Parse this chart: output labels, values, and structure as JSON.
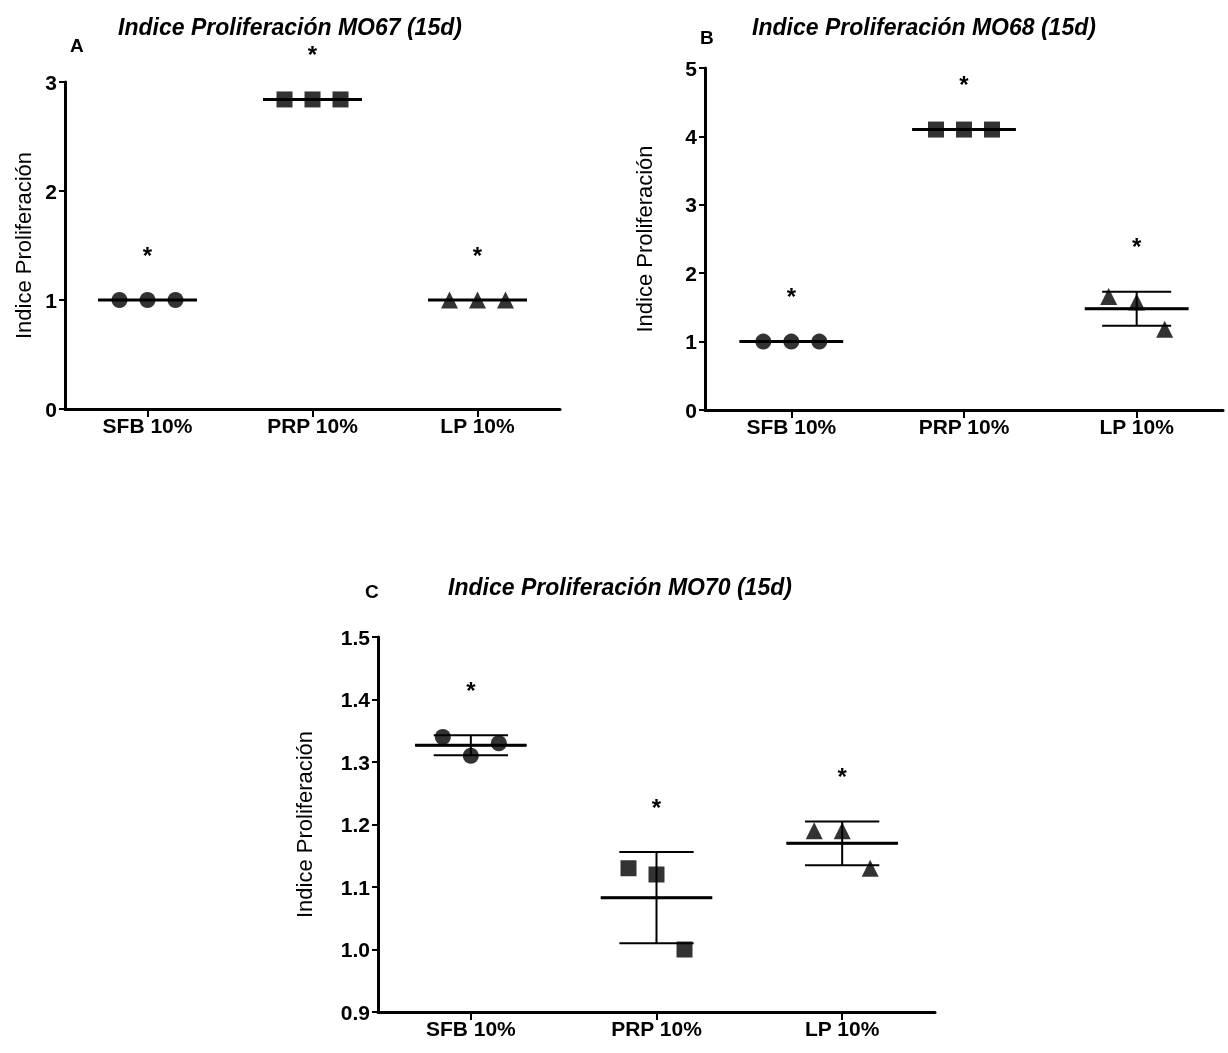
{
  "chart_data": [
    {
      "type": "scatter",
      "title": "Indice Proliferación MO67 (15d)",
      "ylabel": "Indice Proliferación",
      "categories": [
        "SFB 10%",
        "PRP 10%",
        "LP 10%"
      ],
      "ylim": [
        0,
        3
      ],
      "yticks": [
        0,
        1,
        2,
        3
      ],
      "series": [
        {
          "marker": "circle",
          "color": "#000000",
          "x": [
            "SFB 10%",
            "SFB 10%",
            "SFB 10%"
          ],
          "values": [
            1.0,
            1.0,
            1.0
          ]
        },
        {
          "marker": "square",
          "color": "#000000",
          "x": [
            "PRP 10%",
            "PRP 10%",
            "PRP 10%"
          ],
          "values": [
            2.84,
            2.84,
            2.84
          ]
        },
        {
          "marker": "triangle",
          "color": "#000000",
          "x": [
            "LP 10%",
            "LP 10%",
            "LP 10%"
          ],
          "values": [
            1.0,
            1.0,
            1.0
          ]
        },
        {
          "type": "box",
          "color": "#000000",
          "boxes": [
            {
              "low": 1.0,
              "q1": 1.0,
              "median": 1.0,
              "q3": 1.0,
              "high": 1.0
            },
            {
              "low": 2.84,
              "q1": 2.84,
              "median": 2.84,
              "q3": 2.84,
              "high": 2.84
            },
            {
              "low": 1.0,
              "q1": 1.0,
              "median": 1.0,
              "q3": 1.0,
              "high": 1.0
            }
          ]
        }
      ],
      "annotations": [
        "A",
        "*",
        "*",
        "*"
      ]
    },
    {
      "type": "scatter",
      "title": "Indice Proliferación MO68 (15d)",
      "ylabel": "Indice Proliferación",
      "categories": [
        "SFB 10%",
        "PRP 10%",
        "LP 10%"
      ],
      "ylim": [
        0,
        5
      ],
      "yticks": [
        0,
        1,
        2,
        3,
        4,
        5
      ],
      "series": [
        {
          "marker": "circle",
          "color": "#000000",
          "x": [
            "SFB 10%",
            "SFB 10%",
            "SFB 10%"
          ],
          "values": [
            1.0,
            1.0,
            1.0
          ]
        },
        {
          "marker": "square",
          "color": "#000000",
          "x": [
            "PRP 10%",
            "PRP 10%",
            "PRP 10%"
          ],
          "values": [
            4.1,
            4.1,
            4.1
          ]
        },
        {
          "marker": "triangle",
          "color": "#000000",
          "x": [
            "LP 10%",
            "LP 10%",
            "LP 10%"
          ],
          "values": [
            1.66,
            1.58,
            1.18
          ]
        },
        {
          "type": "box",
          "color": "#000000",
          "boxes": [
            {
              "low": 1.0,
              "q1": 1.0,
              "median": 1.0,
              "q3": 1.0,
              "high": 1.0
            },
            {
              "low": 4.1,
              "q1": 4.1,
              "median": 4.1,
              "q3": 4.1,
              "high": 4.1
            },
            {
              "low": 1.23,
              "q1": 1.48,
              "median": 1.48,
              "q3": 1.48,
              "high": 1.73
            }
          ]
        }
      ],
      "annotations": [
        "B",
        "*",
        "*",
        "*"
      ]
    },
    {
      "type": "scatter",
      "title": "Indice Proliferación MO70 (15d)",
      "ylabel": "Indice Proliferación",
      "categories": [
        "SFB 10%",
        "PRP 10%",
        "LP 10%"
      ],
      "ylim": [
        0.9,
        1.5
      ],
      "yticks": [
        {
          "value": 0.9,
          "label": "0.9"
        },
        {
          "value": 1.0,
          "label": "1.0"
        },
        {
          "value": 1.1,
          "label": "1.1"
        },
        {
          "value": 1.2,
          "label": "1.2"
        },
        {
          "value": 1.3,
          "label": "1.3"
        },
        {
          "value": 1.4,
          "label": "1.4"
        },
        {
          "value": 1.5,
          "label": "1.5"
        }
      ],
      "series": [
        {
          "marker": "circle",
          "color": "#000000",
          "x": [
            "SFB 10%",
            "SFB 10%",
            "SFB 10%"
          ],
          "values": [
            1.34,
            1.31,
            1.33
          ]
        },
        {
          "marker": "square",
          "color": "#000000",
          "x": [
            "PRP 10%",
            "PRP 10%",
            "PRP 10%"
          ],
          "values": [
            1.13,
            1.12,
            1.0
          ]
        },
        {
          "marker": "triangle",
          "color": "#000000",
          "x": [
            "LP 10%",
            "LP 10%",
            "LP 10%"
          ],
          "values": [
            1.19,
            1.19,
            1.13
          ]
        },
        {
          "type": "box",
          "color": "#000000",
          "boxes": [
            {
              "low": 1.311,
              "q1": 1.327,
              "median": 1.327,
              "q3": 1.327,
              "high": 1.343
            },
            {
              "low": 1.01,
              "q1": 1.083,
              "median": 1.083,
              "q3": 1.083,
              "high": 1.156
            },
            {
              "low": 1.135,
              "q1": 1.17,
              "median": 1.17,
              "q3": 1.17,
              "high": 1.205
            }
          ]
        }
      ],
      "annotations": [
        "C",
        "*",
        "*",
        "*"
      ]
    }
  ]
}
